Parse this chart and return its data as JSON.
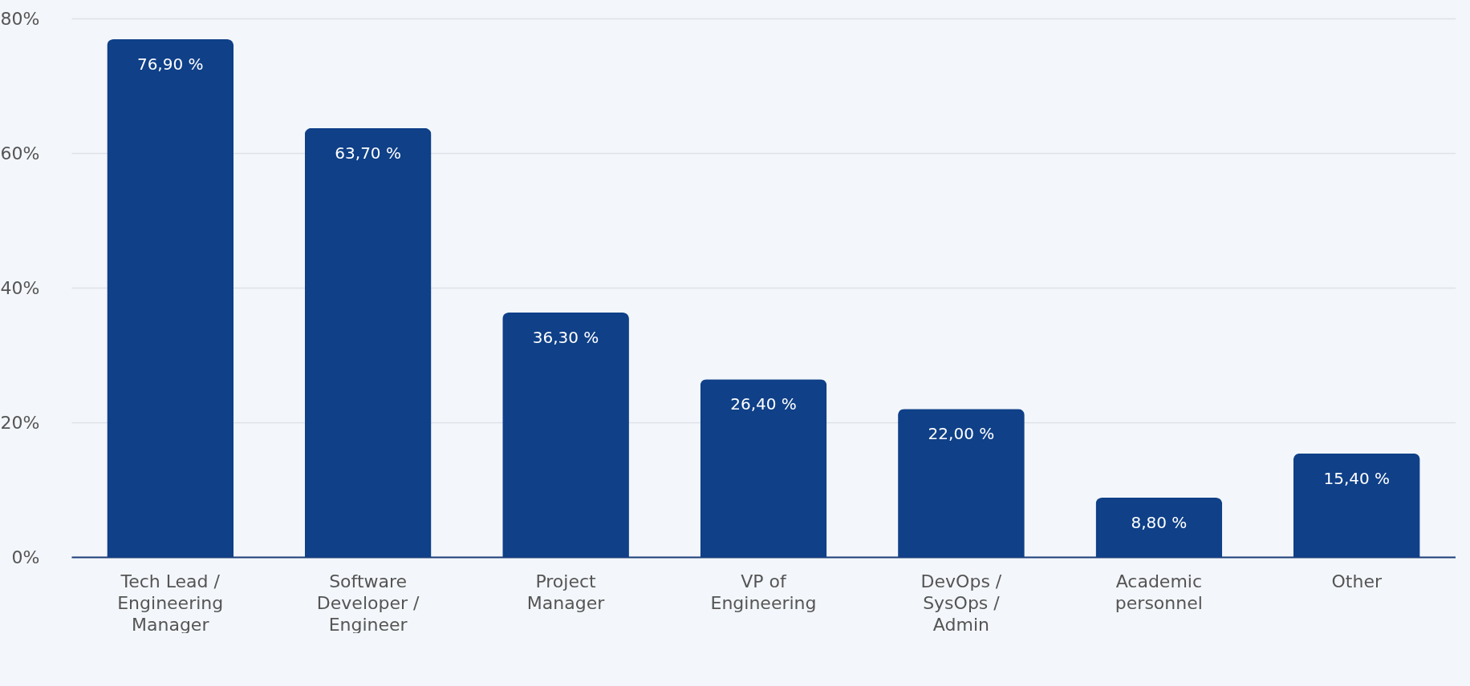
{
  "chart_data": {
    "type": "bar",
    "categories": [
      "Tech Lead / Engineering Manager",
      "Software Developer / Engineer",
      "Project Manager",
      "VP of Engineering",
      "DevOps / SysOps / Admin",
      "Academic personnel",
      "Other"
    ],
    "values": [
      76.9,
      63.7,
      36.3,
      26.4,
      22.0,
      8.8,
      15.4
    ],
    "value_labels": [
      "76,90 %",
      "63,70 %",
      "36,30 %",
      "26,40 %",
      "22,00 %",
      "8,80 %",
      "15,40 %"
    ],
    "color": "#0f4088",
    "ylim": [
      0,
      80
    ],
    "yticks": [
      {
        "value": 0,
        "label": "0%"
      },
      {
        "value": 20,
        "label": "20%"
      },
      {
        "value": 40,
        "label": "40%"
      },
      {
        "value": 60,
        "label": "60%"
      },
      {
        "value": 80,
        "label": "80%"
      }
    ],
    "grid": "y"
  }
}
